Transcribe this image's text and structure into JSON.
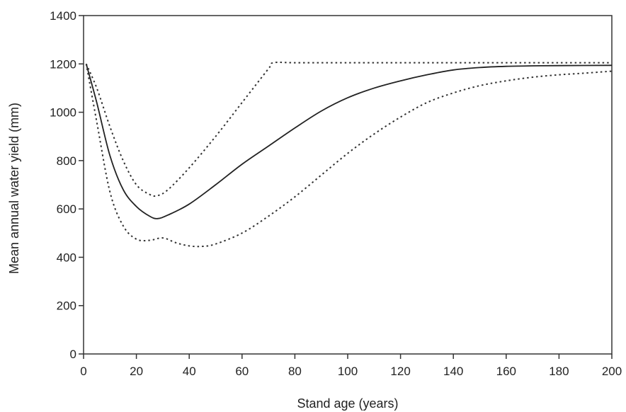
{
  "chart_data": {
    "type": "line",
    "title": "",
    "xlabel": "Stand age (years)",
    "ylabel": "Mean annual water yield (mm)",
    "xlim": [
      0,
      200
    ],
    "ylim": [
      0,
      1400
    ],
    "xticks": [
      0,
      20,
      40,
      60,
      80,
      100,
      120,
      140,
      160,
      180,
      200
    ],
    "yticks": [
      0,
      200,
      400,
      600,
      800,
      1000,
      1200,
      1400
    ],
    "grid": false,
    "legend": "none",
    "series": [
      {
        "style": "solid",
        "x": [
          1,
          5,
          10,
          15,
          20,
          25,
          28,
          32,
          40,
          50,
          60,
          70,
          80,
          90,
          100,
          110,
          120,
          130,
          140,
          150,
          160,
          170,
          180,
          200
        ],
        "y": [
          1200,
          1040,
          820,
          680,
          610,
          570,
          560,
          575,
          620,
          700,
          785,
          860,
          935,
          1005,
          1060,
          1100,
          1130,
          1155,
          1175,
          1185,
          1190,
          1192,
          1193,
          1194
        ]
      },
      {
        "style": "dotted",
        "x": [
          1,
          5,
          10,
          15,
          20,
          25,
          28,
          32,
          40,
          50,
          60,
          70,
          72,
          80,
          100,
          120,
          140,
          160,
          180,
          200
        ],
        "y": [
          1200,
          1100,
          940,
          800,
          700,
          660,
          655,
          680,
          770,
          900,
          1040,
          1180,
          1205,
          1205,
          1205,
          1205,
          1205,
          1205,
          1205,
          1205
        ]
      },
      {
        "style": "dotted",
        "x": [
          1,
          5,
          10,
          15,
          20,
          25,
          30,
          35,
          40,
          45,
          50,
          60,
          70,
          80,
          90,
          100,
          110,
          120,
          130,
          140,
          150,
          160,
          170,
          180,
          190,
          200
        ],
        "y": [
          1200,
          960,
          670,
          530,
          475,
          470,
          480,
          460,
          447,
          445,
          455,
          500,
          570,
          650,
          740,
          830,
          910,
          980,
          1040,
          1080,
          1110,
          1130,
          1145,
          1155,
          1162,
          1170
        ]
      }
    ]
  }
}
